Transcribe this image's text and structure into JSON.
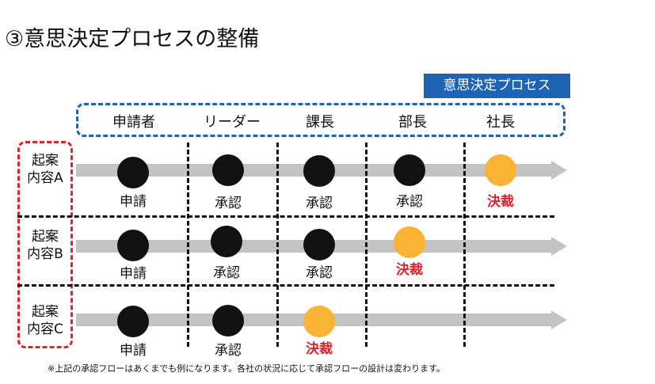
{
  "title": "③意思決定プロセスの整備",
  "legend": "意思決定プロセス",
  "roles": [
    "申請者",
    "リーダー",
    "課長",
    "部長",
    "社長"
  ],
  "rows": [
    {
      "label_line1": "起案",
      "label_line2": "内容A",
      "steps": [
        "申請",
        "承認",
        "承認",
        "承認",
        "決裁"
      ]
    },
    {
      "label_line1": "起案",
      "label_line2": "内容B",
      "steps": [
        "申請",
        "承認",
        "承認",
        "決裁"
      ]
    },
    {
      "label_line1": "起案",
      "label_line2": "内容C",
      "steps": [
        "申請",
        "承認",
        "決裁"
      ]
    }
  ],
  "footnote": "※上記の承認フローはあくまでも例になります。各社の状況に応じて承認フローの設計は変わります。",
  "colors": {
    "approval_dot": "#111111",
    "decision_dot": "#fbb335",
    "decision_text": "#e0232c",
    "arrow": "#c3c3c3",
    "process_frame": "#1f64b4",
    "proposal_frame": "#e0232c"
  }
}
